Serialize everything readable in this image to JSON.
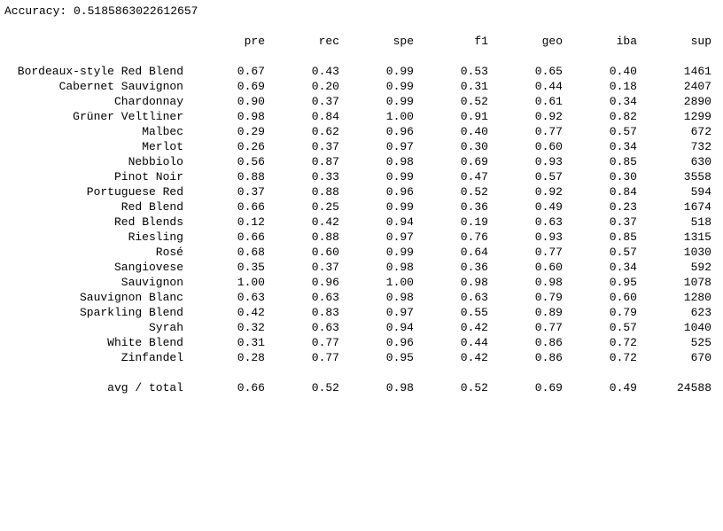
{
  "accuracy_line": "Accuracy: 0.5185863022612657",
  "headers": [
    "pre",
    "rec",
    "spe",
    "f1",
    "geo",
    "iba",
    "sup"
  ],
  "rows": [
    {
      "label": "Bordeaux-style Red Blend",
      "values": [
        "0.67",
        "0.43",
        "0.99",
        "0.53",
        "0.65",
        "0.40",
        "1461"
      ]
    },
    {
      "label": "Cabernet Sauvignon",
      "values": [
        "0.69",
        "0.20",
        "0.99",
        "0.31",
        "0.44",
        "0.18",
        "2407"
      ]
    },
    {
      "label": "Chardonnay",
      "values": [
        "0.90",
        "0.37",
        "0.99",
        "0.52",
        "0.61",
        "0.34",
        "2890"
      ]
    },
    {
      "label": "Grüner Veltliner",
      "values": [
        "0.98",
        "0.84",
        "1.00",
        "0.91",
        "0.92",
        "0.82",
        "1299"
      ]
    },
    {
      "label": "Malbec",
      "values": [
        "0.29",
        "0.62",
        "0.96",
        "0.40",
        "0.77",
        "0.57",
        "672"
      ]
    },
    {
      "label": "Merlot",
      "values": [
        "0.26",
        "0.37",
        "0.97",
        "0.30",
        "0.60",
        "0.34",
        "732"
      ]
    },
    {
      "label": "Nebbiolo",
      "values": [
        "0.56",
        "0.87",
        "0.98",
        "0.69",
        "0.93",
        "0.85",
        "630"
      ]
    },
    {
      "label": "Pinot Noir",
      "values": [
        "0.88",
        "0.33",
        "0.99",
        "0.47",
        "0.57",
        "0.30",
        "3558"
      ]
    },
    {
      "label": "Portuguese Red",
      "values": [
        "0.37",
        "0.88",
        "0.96",
        "0.52",
        "0.92",
        "0.84",
        "594"
      ]
    },
    {
      "label": "Red Blend",
      "values": [
        "0.66",
        "0.25",
        "0.99",
        "0.36",
        "0.49",
        "0.23",
        "1674"
      ]
    },
    {
      "label": "Red Blends",
      "values": [
        "0.12",
        "0.42",
        "0.94",
        "0.19",
        "0.63",
        "0.37",
        "518"
      ]
    },
    {
      "label": "Riesling",
      "values": [
        "0.66",
        "0.88",
        "0.97",
        "0.76",
        "0.93",
        "0.85",
        "1315"
      ]
    },
    {
      "label": "Rosé",
      "values": [
        "0.68",
        "0.60",
        "0.99",
        "0.64",
        "0.77",
        "0.57",
        "1030"
      ]
    },
    {
      "label": "Sangiovese",
      "values": [
        "0.35",
        "0.37",
        "0.98",
        "0.36",
        "0.60",
        "0.34",
        "592"
      ]
    },
    {
      "label": "Sauvignon",
      "values": [
        "1.00",
        "0.96",
        "1.00",
        "0.98",
        "0.98",
        "0.95",
        "1078"
      ]
    },
    {
      "label": "Sauvignon Blanc",
      "values": [
        "0.63",
        "0.63",
        "0.98",
        "0.63",
        "0.79",
        "0.60",
        "1280"
      ]
    },
    {
      "label": "Sparkling Blend",
      "values": [
        "0.42",
        "0.83",
        "0.97",
        "0.55",
        "0.89",
        "0.79",
        "623"
      ]
    },
    {
      "label": "Syrah",
      "values": [
        "0.32",
        "0.63",
        "0.94",
        "0.42",
        "0.77",
        "0.57",
        "1040"
      ]
    },
    {
      "label": "White Blend",
      "values": [
        "0.31",
        "0.77",
        "0.96",
        "0.44",
        "0.86",
        "0.72",
        "525"
      ]
    },
    {
      "label": "Zinfandel",
      "values": [
        "0.28",
        "0.77",
        "0.95",
        "0.42",
        "0.86",
        "0.72",
        "670"
      ]
    }
  ],
  "total": {
    "label": "avg / total",
    "values": [
      "0.66",
      "0.52",
      "0.98",
      "0.52",
      "0.69",
      "0.49",
      "24588"
    ]
  }
}
